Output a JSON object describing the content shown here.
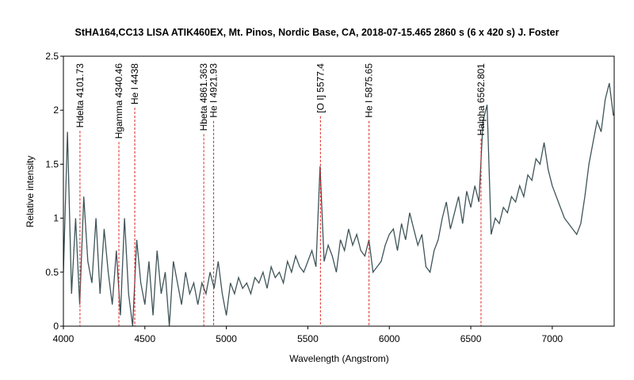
{
  "chart_data": {
    "type": "line",
    "title": "StHA164,CC13 LISA ATIK460EX, Mt. Pinos, Nordic Base, CA,  2018-07-15.465  2860 s (6 x 420 s)  J. Foster",
    "x_label": "Wavelength (Angstrom)",
    "y_label": "Relative intensity",
    "xlim": [
      4000,
      7380
    ],
    "xticks": [
      4000,
      4500,
      5000,
      5500,
      6000,
      6500,
      7000
    ],
    "ylim": [
      0,
      2.5
    ],
    "yticks": [
      0,
      0.5,
      1,
      1.5,
      2,
      2.5
    ],
    "grid": false,
    "x": [
      4000,
      4025,
      4050,
      4075,
      4100,
      4125,
      4150,
      4175,
      4200,
      4225,
      4250,
      4275,
      4300,
      4325,
      4350,
      4375,
      4400,
      4425,
      4450,
      4475,
      4500,
      4525,
      4550,
      4575,
      4600,
      4625,
      4650,
      4675,
      4700,
      4725,
      4750,
      4775,
      4800,
      4825,
      4850,
      4875,
      4900,
      4925,
      4950,
      4975,
      5000,
      5025,
      5050,
      5075,
      5100,
      5125,
      5150,
      5175,
      5200,
      5225,
      5250,
      5275,
      5300,
      5325,
      5350,
      5375,
      5400,
      5425,
      5450,
      5475,
      5500,
      5525,
      5550,
      5575,
      5600,
      5625,
      5650,
      5675,
      5700,
      5725,
      5750,
      5775,
      5800,
      5825,
      5850,
      5875,
      5900,
      5925,
      5950,
      5975,
      6000,
      6025,
      6050,
      6075,
      6100,
      6125,
      6150,
      6175,
      6200,
      6225,
      6250,
      6275,
      6300,
      6325,
      6350,
      6375,
      6400,
      6425,
      6450,
      6475,
      6500,
      6525,
      6550,
      6575,
      6600,
      6625,
      6650,
      6675,
      6700,
      6725,
      6750,
      6775,
      6800,
      6825,
      6850,
      6875,
      6900,
      6925,
      6950,
      6975,
      7000,
      7025,
      7050,
      7075,
      7100,
      7125,
      7150,
      7175,
      7200,
      7225,
      7250,
      7275,
      7300,
      7325,
      7350,
      7375
    ],
    "series": [
      {
        "color": "#3f5458",
        "values": [
          0.5,
          1.8,
          0.3,
          1.0,
          0.2,
          1.2,
          0.6,
          0.4,
          1.0,
          0.3,
          0.9,
          0.5,
          0.2,
          0.7,
          0.1,
          1.0,
          0.3,
          0.0,
          0.8,
          0.4,
          0.2,
          0.6,
          0.1,
          0.7,
          0.3,
          0.5,
          0.0,
          0.6,
          0.4,
          0.2,
          0.5,
          0.3,
          0.4,
          0.2,
          0.4,
          0.3,
          0.5,
          0.35,
          0.6,
          0.3,
          0.1,
          0.4,
          0.3,
          0.45,
          0.35,
          0.4,
          0.3,
          0.45,
          0.4,
          0.5,
          0.35,
          0.55,
          0.45,
          0.5,
          0.4,
          0.6,
          0.5,
          0.65,
          0.55,
          0.5,
          0.6,
          0.7,
          0.55,
          1.48,
          0.6,
          0.75,
          0.65,
          0.5,
          0.8,
          0.7,
          0.9,
          0.75,
          0.85,
          0.7,
          0.65,
          0.8,
          0.5,
          0.55,
          0.6,
          0.75,
          0.85,
          0.9,
          0.7,
          0.95,
          0.8,
          1.05,
          0.9,
          0.75,
          0.85,
          0.55,
          0.5,
          0.7,
          0.8,
          1.0,
          1.15,
          0.9,
          1.05,
          1.2,
          0.95,
          1.25,
          1.1,
          1.3,
          1.15,
          1.9,
          2.05,
          0.85,
          1.0,
          0.95,
          1.1,
          1.05,
          1.2,
          1.15,
          1.3,
          1.2,
          1.4,
          1.35,
          1.55,
          1.5,
          1.7,
          1.45,
          1.3,
          1.2,
          1.1,
          1.0,
          0.95,
          0.9,
          0.85,
          0.95,
          1.2,
          1.5,
          1.7,
          1.9,
          1.8,
          2.1,
          2.25,
          1.95
        ]
      }
    ],
    "annotations": [
      {
        "label": "Hdelta 4101.73",
        "x": 4101.73
      },
      {
        "label": "Hgamma 4340.46",
        "x": 4340.46
      },
      {
        "label": "He I 4438",
        "x": 4438
      },
      {
        "label": "Hbeta 4861.363",
        "x": 4861.363
      },
      {
        "label": "He I 4921.93",
        "x": 4921.93
      },
      {
        "label": "[O I] 5577.4",
        "x": 5577.4
      },
      {
        "label": "He I 5875.65",
        "x": 5875.65
      },
      {
        "label": "Halpha 6562.801",
        "x": 6562.801
      }
    ]
  }
}
